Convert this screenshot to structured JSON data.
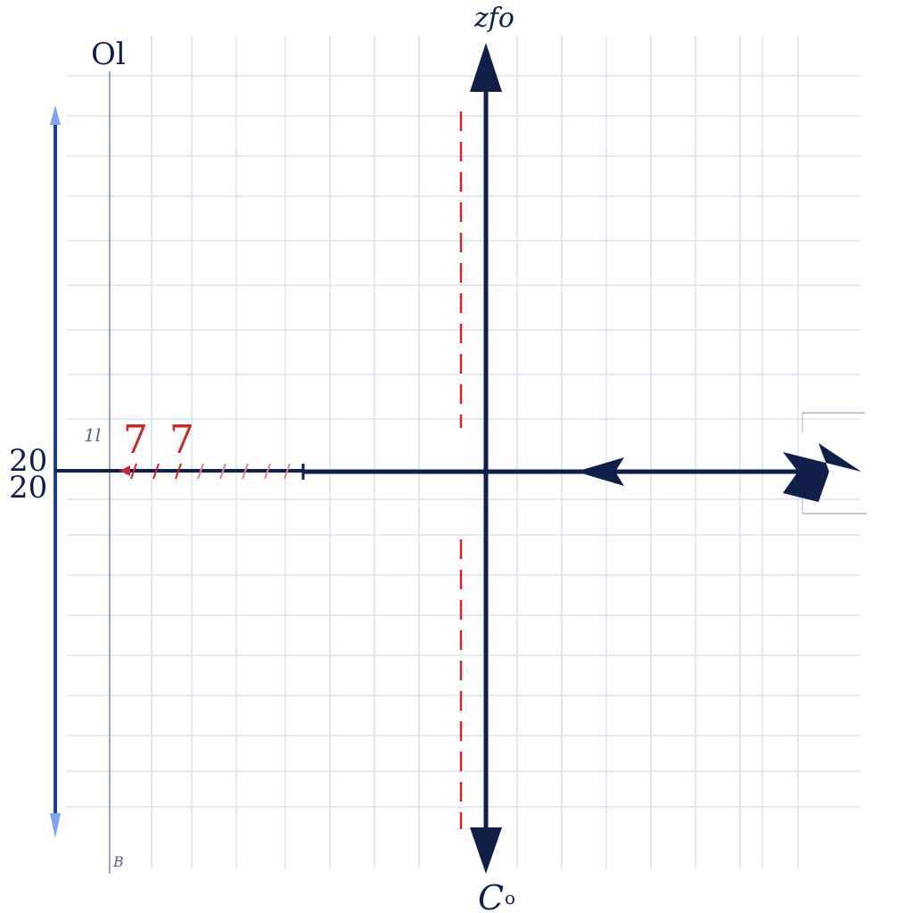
{
  "diagram": {
    "labels": {
      "top_axis": "zfo",
      "top_left": "Ol",
      "bottom_axis": "C",
      "bottom_axis_sub": "o",
      "left_top": "20",
      "left_bottom": "20",
      "left_mark": "1l",
      "red_mark_a": "7",
      "red_mark_b": "7",
      "bottom_left_mark": "B"
    },
    "colors": {
      "axis": "#0f1f4a",
      "grid": "#dbe3ef",
      "dashed": "#c42a2a",
      "red_ticks": "#c42a2a",
      "left_arrow": "#2b4fbf",
      "left_arrow_tip": "#7fa3f0"
    }
  }
}
